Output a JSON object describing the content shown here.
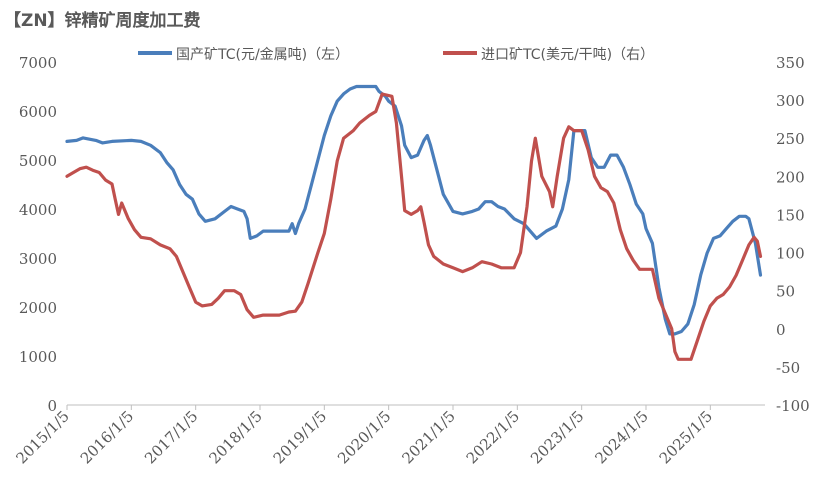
{
  "chart_data": {
    "type": "line",
    "title": "【ZN】锌精矿周度加工费",
    "xlabel": "",
    "ylabel": "",
    "y_left_ticks": [
      "0",
      "1000",
      "2000",
      "3000",
      "4000",
      "5000",
      "6000",
      "7000"
    ],
    "y_right_ticks": [
      "-100",
      "-50",
      "0",
      "50",
      "100",
      "150",
      "200",
      "250",
      "300",
      "350"
    ],
    "x_ticks": [
      "2015/1/5",
      "2016/1/5",
      "2017/1/5",
      "2018/1/5",
      "2019/1/5",
      "2020/1/5",
      "2021/1/5",
      "2022/1/5",
      "2023/1/5",
      "2024/1/5",
      "2025/1/5"
    ],
    "ylim_left": [
      0,
      7000
    ],
    "ylim_right": [
      -100,
      350
    ],
    "xlim": [
      2015.0,
      2025.85
    ],
    "legend_position": "top",
    "grid": false,
    "series": [
      {
        "name": "国产矿TC(元/金属吨)（左）",
        "axis": "left",
        "color": "#4a7ebb",
        "points": [
          [
            2015.0,
            5380
          ],
          [
            2015.15,
            5400
          ],
          [
            2015.25,
            5450
          ],
          [
            2015.45,
            5400
          ],
          [
            2015.55,
            5350
          ],
          [
            2015.7,
            5380
          ],
          [
            2016.0,
            5400
          ],
          [
            2016.15,
            5380
          ],
          [
            2016.3,
            5300
          ],
          [
            2016.45,
            5150
          ],
          [
            2016.55,
            4950
          ],
          [
            2016.65,
            4800
          ],
          [
            2016.75,
            4500
          ],
          [
            2016.85,
            4300
          ],
          [
            2016.95,
            4200
          ],
          [
            2017.05,
            3900
          ],
          [
            2017.15,
            3750
          ],
          [
            2017.3,
            3800
          ],
          [
            2017.45,
            3950
          ],
          [
            2017.55,
            4050
          ],
          [
            2017.65,
            4000
          ],
          [
            2017.75,
            3950
          ],
          [
            2017.8,
            3800
          ],
          [
            2017.85,
            3400
          ],
          [
            2017.95,
            3450
          ],
          [
            2018.05,
            3550
          ],
          [
            2018.3,
            3550
          ],
          [
            2018.45,
            3550
          ],
          [
            2018.5,
            3700
          ],
          [
            2018.55,
            3500
          ],
          [
            2018.6,
            3700
          ],
          [
            2018.7,
            4000
          ],
          [
            2018.8,
            4500
          ],
          [
            2018.9,
            5000
          ],
          [
            2019.0,
            5500
          ],
          [
            2019.1,
            5900
          ],
          [
            2019.2,
            6200
          ],
          [
            2019.3,
            6350
          ],
          [
            2019.4,
            6450
          ],
          [
            2019.5,
            6500
          ],
          [
            2019.6,
            6500
          ],
          [
            2019.7,
            6500
          ],
          [
            2019.8,
            6500
          ],
          [
            2019.85,
            6400
          ],
          [
            2019.95,
            6300
          ],
          [
            2020.0,
            6200
          ],
          [
            2020.1,
            6100
          ],
          [
            2020.2,
            5700
          ],
          [
            2020.25,
            5300
          ],
          [
            2020.35,
            5050
          ],
          [
            2020.45,
            5100
          ],
          [
            2020.55,
            5400
          ],
          [
            2020.6,
            5500
          ],
          [
            2020.65,
            5300
          ],
          [
            2020.75,
            4800
          ],
          [
            2020.85,
            4300
          ],
          [
            2021.0,
            3950
          ],
          [
            2021.15,
            3900
          ],
          [
            2021.3,
            3950
          ],
          [
            2021.4,
            4000
          ],
          [
            2021.5,
            4150
          ],
          [
            2021.6,
            4150
          ],
          [
            2021.7,
            4050
          ],
          [
            2021.8,
            4000
          ],
          [
            2021.95,
            3800
          ],
          [
            2022.1,
            3700
          ],
          [
            2022.2,
            3550
          ],
          [
            2022.3,
            3400
          ],
          [
            2022.45,
            3550
          ],
          [
            2022.6,
            3650
          ],
          [
            2022.7,
            4000
          ],
          [
            2022.8,
            4600
          ],
          [
            2022.88,
            5600
          ],
          [
            2023.0,
            5600
          ],
          [
            2023.05,
            5600
          ],
          [
            2023.15,
            5050
          ],
          [
            2023.25,
            4850
          ],
          [
            2023.35,
            4850
          ],
          [
            2023.45,
            5100
          ],
          [
            2023.55,
            5100
          ],
          [
            2023.65,
            4850
          ],
          [
            2023.75,
            4500
          ],
          [
            2023.85,
            4100
          ],
          [
            2023.95,
            3900
          ],
          [
            2024.0,
            3600
          ],
          [
            2024.1,
            3300
          ],
          [
            2024.2,
            2400
          ],
          [
            2024.3,
            1750
          ],
          [
            2024.37,
            1450
          ],
          [
            2024.45,
            1450
          ],
          [
            2024.55,
            1500
          ],
          [
            2024.65,
            1650
          ],
          [
            2024.75,
            2050
          ],
          [
            2024.85,
            2650
          ],
          [
            2024.95,
            3100
          ],
          [
            2025.05,
            3400
          ],
          [
            2025.15,
            3450
          ],
          [
            2025.25,
            3600
          ],
          [
            2025.35,
            3750
          ],
          [
            2025.45,
            3850
          ],
          [
            2025.55,
            3850
          ],
          [
            2025.6,
            3800
          ],
          [
            2025.7,
            3300
          ],
          [
            2025.78,
            2650
          ]
        ]
      },
      {
        "name": "进口矿TC(美元/干吨)（右）",
        "axis": "right",
        "color": "#c0504d",
        "points": [
          [
            2015.0,
            200
          ],
          [
            2015.1,
            205
          ],
          [
            2015.2,
            210
          ],
          [
            2015.3,
            212
          ],
          [
            2015.4,
            208
          ],
          [
            2015.5,
            205
          ],
          [
            2015.6,
            195
          ],
          [
            2015.7,
            190
          ],
          [
            2015.75,
            170
          ],
          [
            2015.8,
            150
          ],
          [
            2015.85,
            165
          ],
          [
            2015.95,
            145
          ],
          [
            2016.05,
            130
          ],
          [
            2016.15,
            120
          ],
          [
            2016.3,
            118
          ],
          [
            2016.45,
            110
          ],
          [
            2016.6,
            105
          ],
          [
            2016.7,
            95
          ],
          [
            2016.8,
            75
          ],
          [
            2016.9,
            55
          ],
          [
            2017.0,
            35
          ],
          [
            2017.1,
            30
          ],
          [
            2017.25,
            32
          ],
          [
            2017.35,
            40
          ],
          [
            2017.45,
            50
          ],
          [
            2017.6,
            50
          ],
          [
            2017.7,
            45
          ],
          [
            2017.8,
            25
          ],
          [
            2017.9,
            15
          ],
          [
            2018.05,
            18
          ],
          [
            2018.3,
            18
          ],
          [
            2018.45,
            22
          ],
          [
            2018.55,
            23
          ],
          [
            2018.65,
            35
          ],
          [
            2018.75,
            60
          ],
          [
            2018.9,
            100
          ],
          [
            2019.0,
            125
          ],
          [
            2019.1,
            170
          ],
          [
            2019.2,
            220
          ],
          [
            2019.3,
            250
          ],
          [
            2019.45,
            260
          ],
          [
            2019.55,
            270
          ],
          [
            2019.7,
            280
          ],
          [
            2019.8,
            285
          ],
          [
            2019.9,
            308
          ],
          [
            2020.05,
            305
          ],
          [
            2020.12,
            270
          ],
          [
            2020.2,
            200
          ],
          [
            2020.25,
            155
          ],
          [
            2020.35,
            150
          ],
          [
            2020.45,
            155
          ],
          [
            2020.5,
            160
          ],
          [
            2020.55,
            140
          ],
          [
            2020.62,
            110
          ],
          [
            2020.7,
            95
          ],
          [
            2020.85,
            85
          ],
          [
            2021.0,
            80
          ],
          [
            2021.15,
            75
          ],
          [
            2021.3,
            80
          ],
          [
            2021.45,
            88
          ],
          [
            2021.6,
            85
          ],
          [
            2021.75,
            80
          ],
          [
            2021.95,
            80
          ],
          [
            2022.05,
            100
          ],
          [
            2022.15,
            160
          ],
          [
            2022.22,
            220
          ],
          [
            2022.28,
            250
          ],
          [
            2022.38,
            200
          ],
          [
            2022.5,
            180
          ],
          [
            2022.55,
            160
          ],
          [
            2022.62,
            200
          ],
          [
            2022.72,
            250
          ],
          [
            2022.8,
            265
          ],
          [
            2022.88,
            260
          ],
          [
            2023.0,
            260
          ],
          [
            2023.1,
            235
          ],
          [
            2023.2,
            200
          ],
          [
            2023.3,
            185
          ],
          [
            2023.4,
            180
          ],
          [
            2023.5,
            165
          ],
          [
            2023.6,
            130
          ],
          [
            2023.7,
            105
          ],
          [
            2023.8,
            90
          ],
          [
            2023.9,
            78
          ],
          [
            2024.1,
            78
          ],
          [
            2024.2,
            40
          ],
          [
            2024.3,
            20
          ],
          [
            2024.4,
            0
          ],
          [
            2024.45,
            -30
          ],
          [
            2024.5,
            -40
          ],
          [
            2024.6,
            -40
          ],
          [
            2024.7,
            -40
          ],
          [
            2024.8,
            -15
          ],
          [
            2024.9,
            10
          ],
          [
            2025.0,
            30
          ],
          [
            2025.1,
            40
          ],
          [
            2025.2,
            45
          ],
          [
            2025.3,
            55
          ],
          [
            2025.4,
            70
          ],
          [
            2025.5,
            90
          ],
          [
            2025.6,
            110
          ],
          [
            2025.68,
            120
          ],
          [
            2025.73,
            115
          ],
          [
            2025.78,
            95
          ]
        ]
      }
    ]
  }
}
